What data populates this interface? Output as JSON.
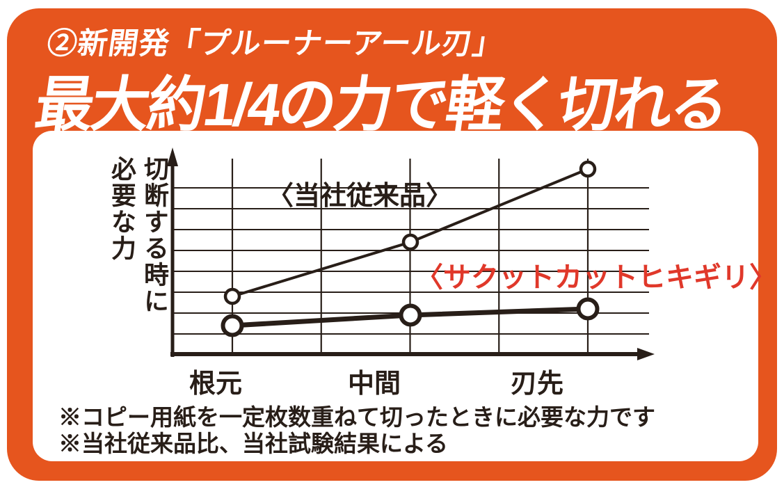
{
  "colors": {
    "orange": "#E6551E",
    "red": "#E0382A",
    "ink": "#281E18",
    "panel_white": "#FFFFFF",
    "title_white": "#FFFFFF"
  },
  "header": {
    "subtitle": "②新開発「プルーナーアール刃」",
    "title": "最大約1/4の力で軽く切れる"
  },
  "chart_data": {
    "type": "line",
    "categories": [
      "根元",
      "中間",
      "刃先"
    ],
    "ylabel": "切断する時に必要な力",
    "xlabel": "",
    "title": "",
    "ylim": [
      0,
      9.7
    ],
    "grid": true,
    "legend_position": "inline-annotations",
    "series": [
      {
        "name": "〈当社従来品〉",
        "values": [
          2.8,
          5.4,
          8.9
        ],
        "style": "thin",
        "marker": "open-circle",
        "label_color": "#281E18"
      },
      {
        "name": "〈サクットカットヒキギリ〉",
        "values": [
          1.4,
          1.9,
          2.2
        ],
        "style": "thick",
        "marker": "open-circle",
        "label_color": "#E0382A"
      }
    ]
  },
  "footnotes": [
    "※コピー用紙を一定枚数重ねて切ったときに必要な力です",
    "※当社従来品比、当社試験結果による"
  ]
}
